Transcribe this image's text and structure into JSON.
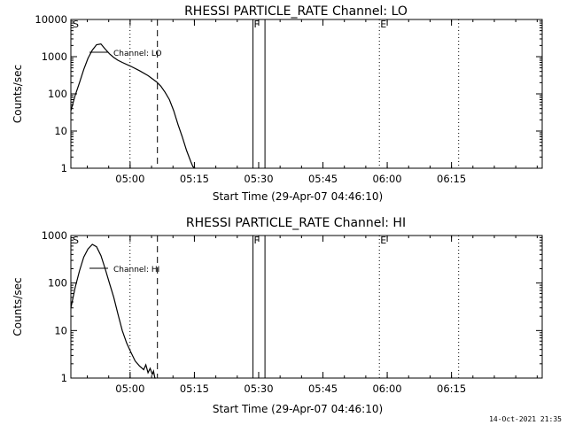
{
  "chart_data": [
    {
      "type": "line",
      "title": "RHESSI PARTICLE_RATE Channel: LO",
      "xlabel": "Start Time (29-Apr-07 04:46:10)",
      "ylabel": "Counts/sec",
      "yscale": "log",
      "ylim": [
        1,
        10000
      ],
      "yticks": [
        1,
        10,
        100,
        1000,
        10000
      ],
      "ytick_labels": [
        "1",
        "10",
        "100",
        "1000",
        "10000"
      ],
      "xlim_minutes": [
        0,
        110
      ],
      "xticks_minutes": [
        13.83,
        28.83,
        43.83,
        58.83,
        73.83,
        88.83
      ],
      "xtick_labels": [
        "05:00",
        "05:15",
        "05:30",
        "05:45",
        "06:00",
        "06:15"
      ],
      "legend": "top-left",
      "series": [
        {
          "name": "Channel: LO",
          "x": [
            0,
            1,
            2,
            3,
            4,
            5,
            6,
            7,
            8,
            9,
            10,
            11,
            12,
            14,
            16,
            18,
            20,
            21,
            22,
            23,
            24,
            25,
            26,
            27,
            28,
            28.5,
            29
          ],
          "y": [
            35,
            90,
            200,
            450,
            900,
            1500,
            2100,
            2200,
            1600,
            1200,
            950,
            800,
            700,
            550,
            420,
            310,
            210,
            160,
            110,
            70,
            35,
            15,
            7,
            3,
            1.5,
            1.1,
            1
          ]
        }
      ],
      "markers": [
        {
          "label": "S",
          "x": 0.2,
          "style": "none"
        },
        {
          "label": "",
          "x": 13.8,
          "style": "dotted"
        },
        {
          "label": "",
          "x": 20.2,
          "style": "dashed"
        },
        {
          "label": "F",
          "x": 42.5,
          "style": "solid"
        },
        {
          "label": "",
          "x": 45.3,
          "style": "solid"
        },
        {
          "label": "E",
          "x": 72.0,
          "style": "dotted"
        },
        {
          "label": "",
          "x": 90.5,
          "style": "dotted"
        }
      ]
    },
    {
      "type": "line",
      "title": "RHESSI PARTICLE_RATE Channel: HI",
      "xlabel": "Start Time (29-Apr-07 04:46:10)",
      "ylabel": "Counts/sec",
      "yscale": "log",
      "ylim": [
        1,
        1000
      ],
      "yticks": [
        1,
        10,
        100,
        1000
      ],
      "ytick_labels": [
        "1",
        "10",
        "100",
        "1000"
      ],
      "xlim_minutes": [
        0,
        110
      ],
      "xticks_minutes": [
        13.83,
        28.83,
        43.83,
        58.83,
        73.83,
        88.83
      ],
      "xtick_labels": [
        "05:00",
        "05:15",
        "05:30",
        "05:45",
        "06:00",
        "06:15"
      ],
      "legend": "top-left",
      "series": [
        {
          "name": "Channel: HI",
          "x": [
            0,
            1,
            2,
            3,
            4,
            5,
            6,
            7,
            8,
            9,
            10,
            11,
            12,
            13,
            14,
            15,
            16,
            17,
            17.5,
            18,
            18.5,
            19,
            19.3,
            19.6,
            19.8
          ],
          "y": [
            30,
            80,
            180,
            350,
            520,
            650,
            580,
            380,
            200,
            100,
            50,
            22,
            10,
            5.5,
            3.5,
            2.3,
            1.8,
            1.5,
            1.9,
            1.3,
            1.6,
            1.2,
            1.4,
            1.0,
            1.0
          ]
        }
      ],
      "markers": [
        {
          "label": "S",
          "x": 0.2,
          "style": "none"
        },
        {
          "label": "",
          "x": 13.8,
          "style": "dotted"
        },
        {
          "label": "",
          "x": 20.2,
          "style": "dashed"
        },
        {
          "label": "F",
          "x": 42.5,
          "style": "solid"
        },
        {
          "label": "",
          "x": 45.3,
          "style": "solid"
        },
        {
          "label": "E",
          "x": 72.0,
          "style": "dotted"
        },
        {
          "label": "",
          "x": 90.5,
          "style": "dotted"
        }
      ]
    }
  ],
  "footer": "14-Oct-2021 21:35",
  "colors": {
    "line": "#000000",
    "background": "#ffffff"
  }
}
